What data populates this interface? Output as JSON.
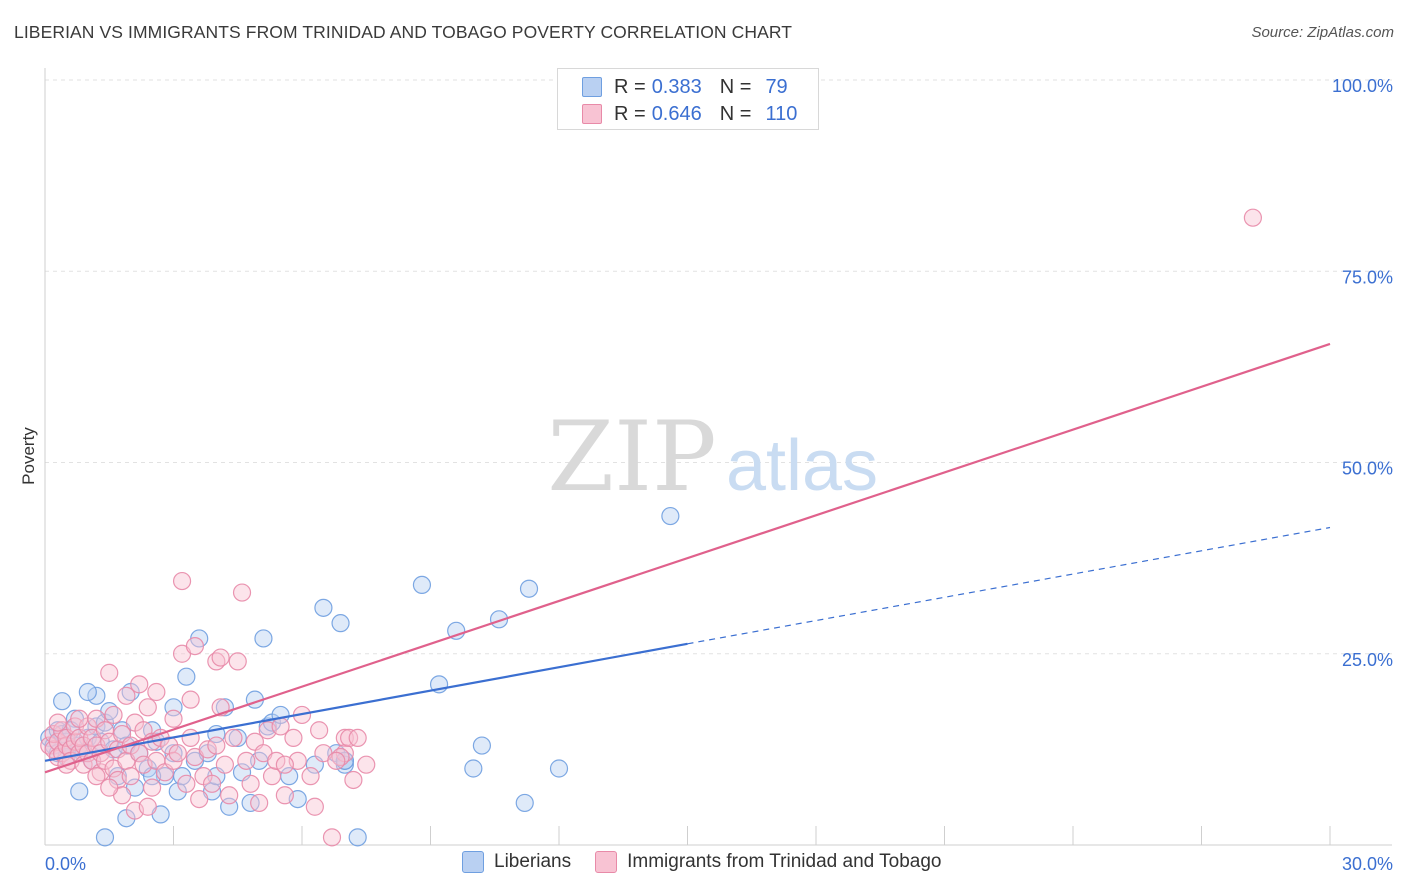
{
  "header": {
    "title": "LIBERIAN VS IMMIGRANTS FROM TRINIDAD AND TOBAGO POVERTY CORRELATION CHART",
    "source": "Source: ZipAtlas.com"
  },
  "watermark": {
    "zip": "ZIP",
    "atlas": "atlas"
  },
  "legend": {
    "rows": [
      {
        "r_label": "R =",
        "r_value": "0.383",
        "n_label": "N =",
        "n_value": "79",
        "color": "#6f9fe0",
        "fill": "#b9d0f2"
      },
      {
        "r_label": "R =",
        "r_value": "0.646",
        "n_label": "N =",
        "n_value": "110",
        "color": "#e88aa8",
        "fill": "#f8c3d3"
      }
    ]
  },
  "bottom_legend": {
    "items": [
      {
        "label": "Liberians",
        "color": "#6f9fe0",
        "fill": "#b9d0f2"
      },
      {
        "label": "Immigrants from Trinidad and Tobago",
        "color": "#e88aa8",
        "fill": "#f8c3d3"
      }
    ]
  },
  "chart_data": {
    "type": "scatter",
    "title": "LIBERIAN VS IMMIGRANTS FROM TRINIDAD AND TOBAGO POVERTY CORRELATION CHART",
    "ylabel": "Poverty",
    "xlabel": "",
    "xlim": [
      0,
      30
    ],
    "ylim": [
      0,
      100
    ],
    "x_tick_labels": [
      {
        "value": 0,
        "label": "0.0%"
      },
      {
        "value": 30,
        "label": "30.0%"
      }
    ],
    "y_tick_labels": [
      {
        "value": 25,
        "label": "25.0%"
      },
      {
        "value": 50,
        "label": "50.0%"
      },
      {
        "value": 75,
        "label": "75.0%"
      },
      {
        "value": 100,
        "label": "100.0%"
      }
    ],
    "grid": "horizontal dashed",
    "legend_position": "top-center",
    "colors": {
      "liberians": "#3b6fd1",
      "trinidad": "#e0618c"
    },
    "series": [
      {
        "name": "Liberians",
        "R": 0.383,
        "N": 79,
        "trend": {
          "x0": 0,
          "y0": 11.0,
          "x1": 15,
          "y1": 26.3,
          "dashed_to_x": 30,
          "dashed_to_y": 41.5
        },
        "points": [
          [
            0.1,
            14.0
          ],
          [
            0.2,
            13.0
          ],
          [
            0.3,
            15.0
          ],
          [
            0.3,
            12.0
          ],
          [
            0.4,
            14.5
          ],
          [
            0.5,
            13.5
          ],
          [
            0.5,
            11.5
          ],
          [
            0.6,
            12.5
          ],
          [
            0.7,
            16.5
          ],
          [
            0.8,
            13.0
          ],
          [
            0.4,
            18.8
          ],
          [
            0.6,
            15.0
          ],
          [
            0.9,
            12.0
          ],
          [
            1.0,
            14.0
          ],
          [
            1.1,
            11.0
          ],
          [
            1.2,
            15.5
          ],
          [
            1.2,
            19.5
          ],
          [
            1.3,
            13.5
          ],
          [
            1.4,
            16.0
          ],
          [
            1.5,
            17.5
          ],
          [
            1.6,
            12.5
          ],
          [
            1.7,
            9.0
          ],
          [
            1.8,
            15.0
          ],
          [
            1.9,
            13.0
          ],
          [
            2.0,
            20.0
          ],
          [
            2.1,
            7.5
          ],
          [
            2.2,
            12.0
          ],
          [
            2.4,
            10.0
          ],
          [
            2.5,
            15.0
          ],
          [
            2.6,
            13.5
          ],
          [
            2.7,
            4.0
          ],
          [
            2.8,
            9.0
          ],
          [
            3.0,
            18.0
          ],
          [
            3.1,
            7.0
          ],
          [
            3.2,
            9.0
          ],
          [
            3.3,
            22.0
          ],
          [
            3.5,
            11.0
          ],
          [
            3.6,
            27.0
          ],
          [
            3.8,
            12.0
          ],
          [
            3.9,
            7.0
          ],
          [
            4.0,
            9.0
          ],
          [
            4.2,
            18.0
          ],
          [
            4.3,
            5.0
          ],
          [
            4.5,
            14.0
          ],
          [
            4.6,
            9.5
          ],
          [
            4.8,
            5.5
          ],
          [
            4.9,
            19.0
          ],
          [
            5.0,
            11.0
          ],
          [
            5.1,
            27.0
          ],
          [
            5.2,
            15.5
          ],
          [
            5.3,
            16.0
          ],
          [
            5.5,
            17.0
          ],
          [
            5.7,
            9.0
          ],
          [
            5.9,
            6.0
          ],
          [
            6.3,
            10.5
          ],
          [
            6.5,
            31.0
          ],
          [
            6.8,
            12.0
          ],
          [
            6.9,
            29.0
          ],
          [
            7.0,
            11.0
          ],
          [
            7.3,
            1.0
          ],
          [
            7.0,
            10.5
          ],
          [
            7.0,
            11.0
          ],
          [
            8.8,
            34.0
          ],
          [
            9.2,
            21.0
          ],
          [
            9.6,
            28.0
          ],
          [
            10.0,
            10.0
          ],
          [
            10.2,
            13.0
          ],
          [
            11.3,
            33.5
          ],
          [
            12.0,
            10.0
          ],
          [
            14.6,
            43.0
          ],
          [
            11.2,
            5.5
          ],
          [
            10.6,
            29.5
          ],
          [
            1.4,
            1.0
          ],
          [
            1.9,
            3.5
          ],
          [
            0.8,
            7.0
          ],
          [
            2.5,
            9.0
          ],
          [
            3.0,
            12.0
          ],
          [
            4.0,
            14.5
          ],
          [
            1.0,
            20.0
          ]
        ]
      },
      {
        "name": "Immigrants from Trinidad and Tobago",
        "R": 0.646,
        "N": 110,
        "trend": {
          "x0": 0,
          "y0": 9.5,
          "x1": 30,
          "y1": 65.5
        },
        "points": [
          [
            0.1,
            13.0
          ],
          [
            0.2,
            12.5
          ],
          [
            0.2,
            14.5
          ],
          [
            0.3,
            13.5
          ],
          [
            0.3,
            11.5
          ],
          [
            0.4,
            12.0
          ],
          [
            0.4,
            15.0
          ],
          [
            0.5,
            13.0
          ],
          [
            0.5,
            14.0
          ],
          [
            0.6,
            12.5
          ],
          [
            0.6,
            11.0
          ],
          [
            0.7,
            13.5
          ],
          [
            0.7,
            15.5
          ],
          [
            0.8,
            12.0
          ],
          [
            0.8,
            14.0
          ],
          [
            0.9,
            13.0
          ],
          [
            0.9,
            10.5
          ],
          [
            1.0,
            15.5
          ],
          [
            1.0,
            12.0
          ],
          [
            1.1,
            11.0
          ],
          [
            1.1,
            14.0
          ],
          [
            1.2,
            13.0
          ],
          [
            1.2,
            16.5
          ],
          [
            1.3,
            12.0
          ],
          [
            1.3,
            9.5
          ],
          [
            1.4,
            15.0
          ],
          [
            1.4,
            11.0
          ],
          [
            1.5,
            13.5
          ],
          [
            1.5,
            22.5
          ],
          [
            1.6,
            17.0
          ],
          [
            1.6,
            10.0
          ],
          [
            1.7,
            12.5
          ],
          [
            1.7,
            8.5
          ],
          [
            1.8,
            14.5
          ],
          [
            1.8,
            6.5
          ],
          [
            1.9,
            11.0
          ],
          [
            1.9,
            19.5
          ],
          [
            2.0,
            13.0
          ],
          [
            2.0,
            9.0
          ],
          [
            2.1,
            16.0
          ],
          [
            2.1,
            4.5
          ],
          [
            2.2,
            12.0
          ],
          [
            2.2,
            21.0
          ],
          [
            2.3,
            10.5
          ],
          [
            2.3,
            15.0
          ],
          [
            2.4,
            18.0
          ],
          [
            2.5,
            13.5
          ],
          [
            2.5,
            7.5
          ],
          [
            2.6,
            11.0
          ],
          [
            2.6,
            20.0
          ],
          [
            2.7,
            14.0
          ],
          [
            2.8,
            9.5
          ],
          [
            2.9,
            13.0
          ],
          [
            3.0,
            16.5
          ],
          [
            3.0,
            11.0
          ],
          [
            3.1,
            12.0
          ],
          [
            3.2,
            25.0
          ],
          [
            3.2,
            34.5
          ],
          [
            3.3,
            8.0
          ],
          [
            3.4,
            14.0
          ],
          [
            3.5,
            11.5
          ],
          [
            3.5,
            26.0
          ],
          [
            3.6,
            6.0
          ],
          [
            3.7,
            9.0
          ],
          [
            3.8,
            12.5
          ],
          [
            3.9,
            8.0
          ],
          [
            4.0,
            13.0
          ],
          [
            4.0,
            24.0
          ],
          [
            4.1,
            18.0
          ],
          [
            4.2,
            10.5
          ],
          [
            4.3,
            6.5
          ],
          [
            4.4,
            14.0
          ],
          [
            4.5,
            24.0
          ],
          [
            4.6,
            33.0
          ],
          [
            4.7,
            11.0
          ],
          [
            4.8,
            8.0
          ],
          [
            4.9,
            13.5
          ],
          [
            5.0,
            5.5
          ],
          [
            5.1,
            12.0
          ],
          [
            5.2,
            15.0
          ],
          [
            5.3,
            9.0
          ],
          [
            5.4,
            11.0
          ],
          [
            5.5,
            15.5
          ],
          [
            5.6,
            6.5
          ],
          [
            5.8,
            14.0
          ],
          [
            5.9,
            11.0
          ],
          [
            6.0,
            17.0
          ],
          [
            6.2,
            9.0
          ],
          [
            6.3,
            5.0
          ],
          [
            6.4,
            15.0
          ],
          [
            6.5,
            12.0
          ],
          [
            6.7,
            1.0
          ],
          [
            7.0,
            14.0
          ],
          [
            7.2,
            8.5
          ],
          [
            7.5,
            10.5
          ],
          [
            7.0,
            12.0
          ],
          [
            6.9,
            11.5
          ],
          [
            0.3,
            16.0
          ],
          [
            0.5,
            10.5
          ],
          [
            0.8,
            16.5
          ],
          [
            1.2,
            9.0
          ],
          [
            1.5,
            7.5
          ],
          [
            2.4,
            5.0
          ],
          [
            3.4,
            19.0
          ],
          [
            4.1,
            24.5
          ],
          [
            5.6,
            10.5
          ],
          [
            6.8,
            11.0
          ],
          [
            7.1,
            14.0
          ],
          [
            7.3,
            14.0
          ],
          [
            28.2,
            82.0
          ]
        ]
      }
    ]
  }
}
